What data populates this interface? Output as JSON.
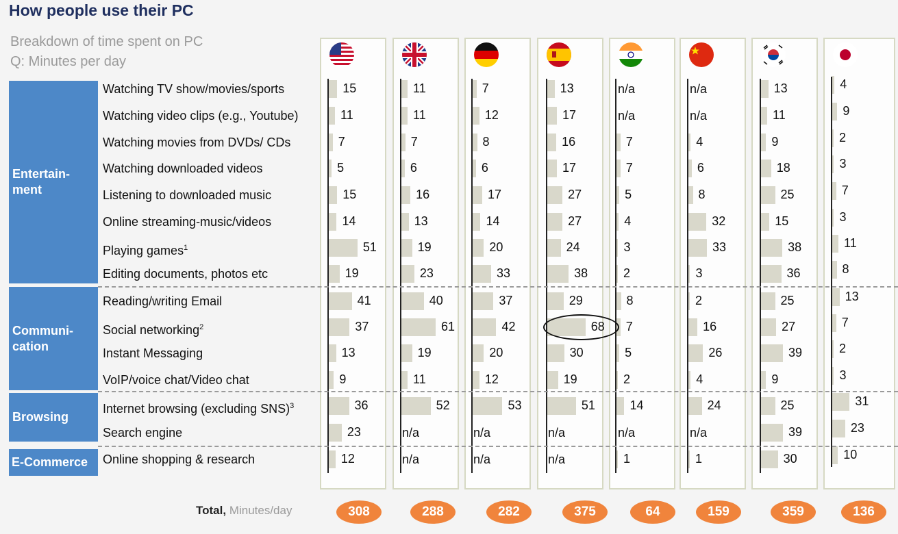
{
  "title": "How people use their PC",
  "subtitle_line1": "Breakdown of time spent on PC",
  "subtitle_line2": "Q: Minutes per day",
  "total_label": "Total,",
  "total_unit": "Minutes/day",
  "categories": [
    {
      "label": "Entertain-\nment"
    },
    {
      "label": "Communi-\ncation"
    },
    {
      "label": "Browsing"
    },
    {
      "label": "E-Commerce"
    }
  ],
  "chart_data": {
    "type": "bar",
    "title": "How people use their PC",
    "countries": [
      "US",
      "UK",
      "Germany",
      "Spain",
      "India",
      "China",
      "Korea",
      "Japan"
    ],
    "flag_icons": [
      "us-flag-icon",
      "uk-flag-icon",
      "germany-flag-icon",
      "spain-flag-icon",
      "india-flag-icon",
      "china-flag-icon",
      "korea-flag-icon",
      "japan-flag-icon"
    ],
    "rows": [
      {
        "category": "Entertain-\nment",
        "label": "Watching TV show/movies/sports",
        "sup": "",
        "values": [
          15,
          11,
          7,
          13,
          null,
          null,
          13,
          4
        ]
      },
      {
        "category": "Entertain-\nment",
        "label": "Watching video clips (e.g., Youtube)",
        "sup": "",
        "values": [
          11,
          11,
          12,
          17,
          null,
          null,
          11,
          9
        ]
      },
      {
        "category": "Entertain-\nment",
        "label": "Watching movies from DVDs/ CDs",
        "sup": "",
        "values": [
          7,
          7,
          8,
          16,
          7,
          4,
          9,
          2
        ]
      },
      {
        "category": "Entertain-\nment",
        "label": "Watching downloaded videos",
        "sup": "",
        "values": [
          5,
          6,
          6,
          17,
          7,
          6,
          18,
          3
        ]
      },
      {
        "category": "Entertain-\nment",
        "label": "Listening to downloaded music",
        "sup": "",
        "values": [
          15,
          16,
          17,
          27,
          5,
          8,
          25,
          7
        ]
      },
      {
        "category": "Entertain-\nment",
        "label": "Online streaming-music/videos",
        "sup": "",
        "values": [
          14,
          13,
          14,
          27,
          4,
          32,
          15,
          3
        ]
      },
      {
        "category": "Entertain-\nment",
        "label": "Playing games",
        "sup": "1",
        "values": [
          51,
          19,
          20,
          24,
          3,
          33,
          38,
          11
        ]
      },
      {
        "category": "Entertain-\nment",
        "label": "Editing documents, photos etc",
        "sup": "",
        "values": [
          19,
          23,
          33,
          38,
          2,
          3,
          36,
          8
        ]
      },
      {
        "category": "Communi-\ncation",
        "label": "Reading/writing Email",
        "sup": "",
        "values": [
          41,
          40,
          37,
          29,
          8,
          2,
          25,
          13
        ]
      },
      {
        "category": "Communi-\ncation",
        "label": "Social networking",
        "sup": "2",
        "values": [
          37,
          61,
          42,
          68,
          7,
          16,
          27,
          7
        ]
      },
      {
        "category": "Communi-\ncation",
        "label": "Instant Messaging",
        "sup": "",
        "values": [
          13,
          19,
          20,
          30,
          5,
          26,
          39,
          2
        ]
      },
      {
        "category": "Communi-\ncation",
        "label": "VoIP/voice chat/Video chat",
        "sup": "",
        "values": [
          9,
          11,
          12,
          19,
          2,
          4,
          9,
          3
        ]
      },
      {
        "category": "Browsing",
        "label": "Internet browsing (excluding SNS)",
        "sup": "3",
        "values": [
          36,
          52,
          53,
          51,
          14,
          24,
          25,
          31
        ]
      },
      {
        "category": "Browsing",
        "label": "Search engine",
        "sup": "",
        "values": [
          23,
          null,
          null,
          null,
          null,
          null,
          39,
          23
        ]
      },
      {
        "category": "E-Commerce",
        "label": "Online shopping & research",
        "sup": "",
        "values": [
          12,
          null,
          null,
          null,
          1,
          1,
          30,
          10
        ]
      }
    ],
    "na_label": "n/a",
    "totals": [
      308,
      288,
      282,
      375,
      64,
      159,
      359,
      136
    ],
    "highlight": {
      "row": 9,
      "col": 3
    },
    "colors": {
      "bar": "#d9d8cb",
      "category": "#4d88c8",
      "total": "#f0843c",
      "title": "#1f2f5f"
    }
  }
}
